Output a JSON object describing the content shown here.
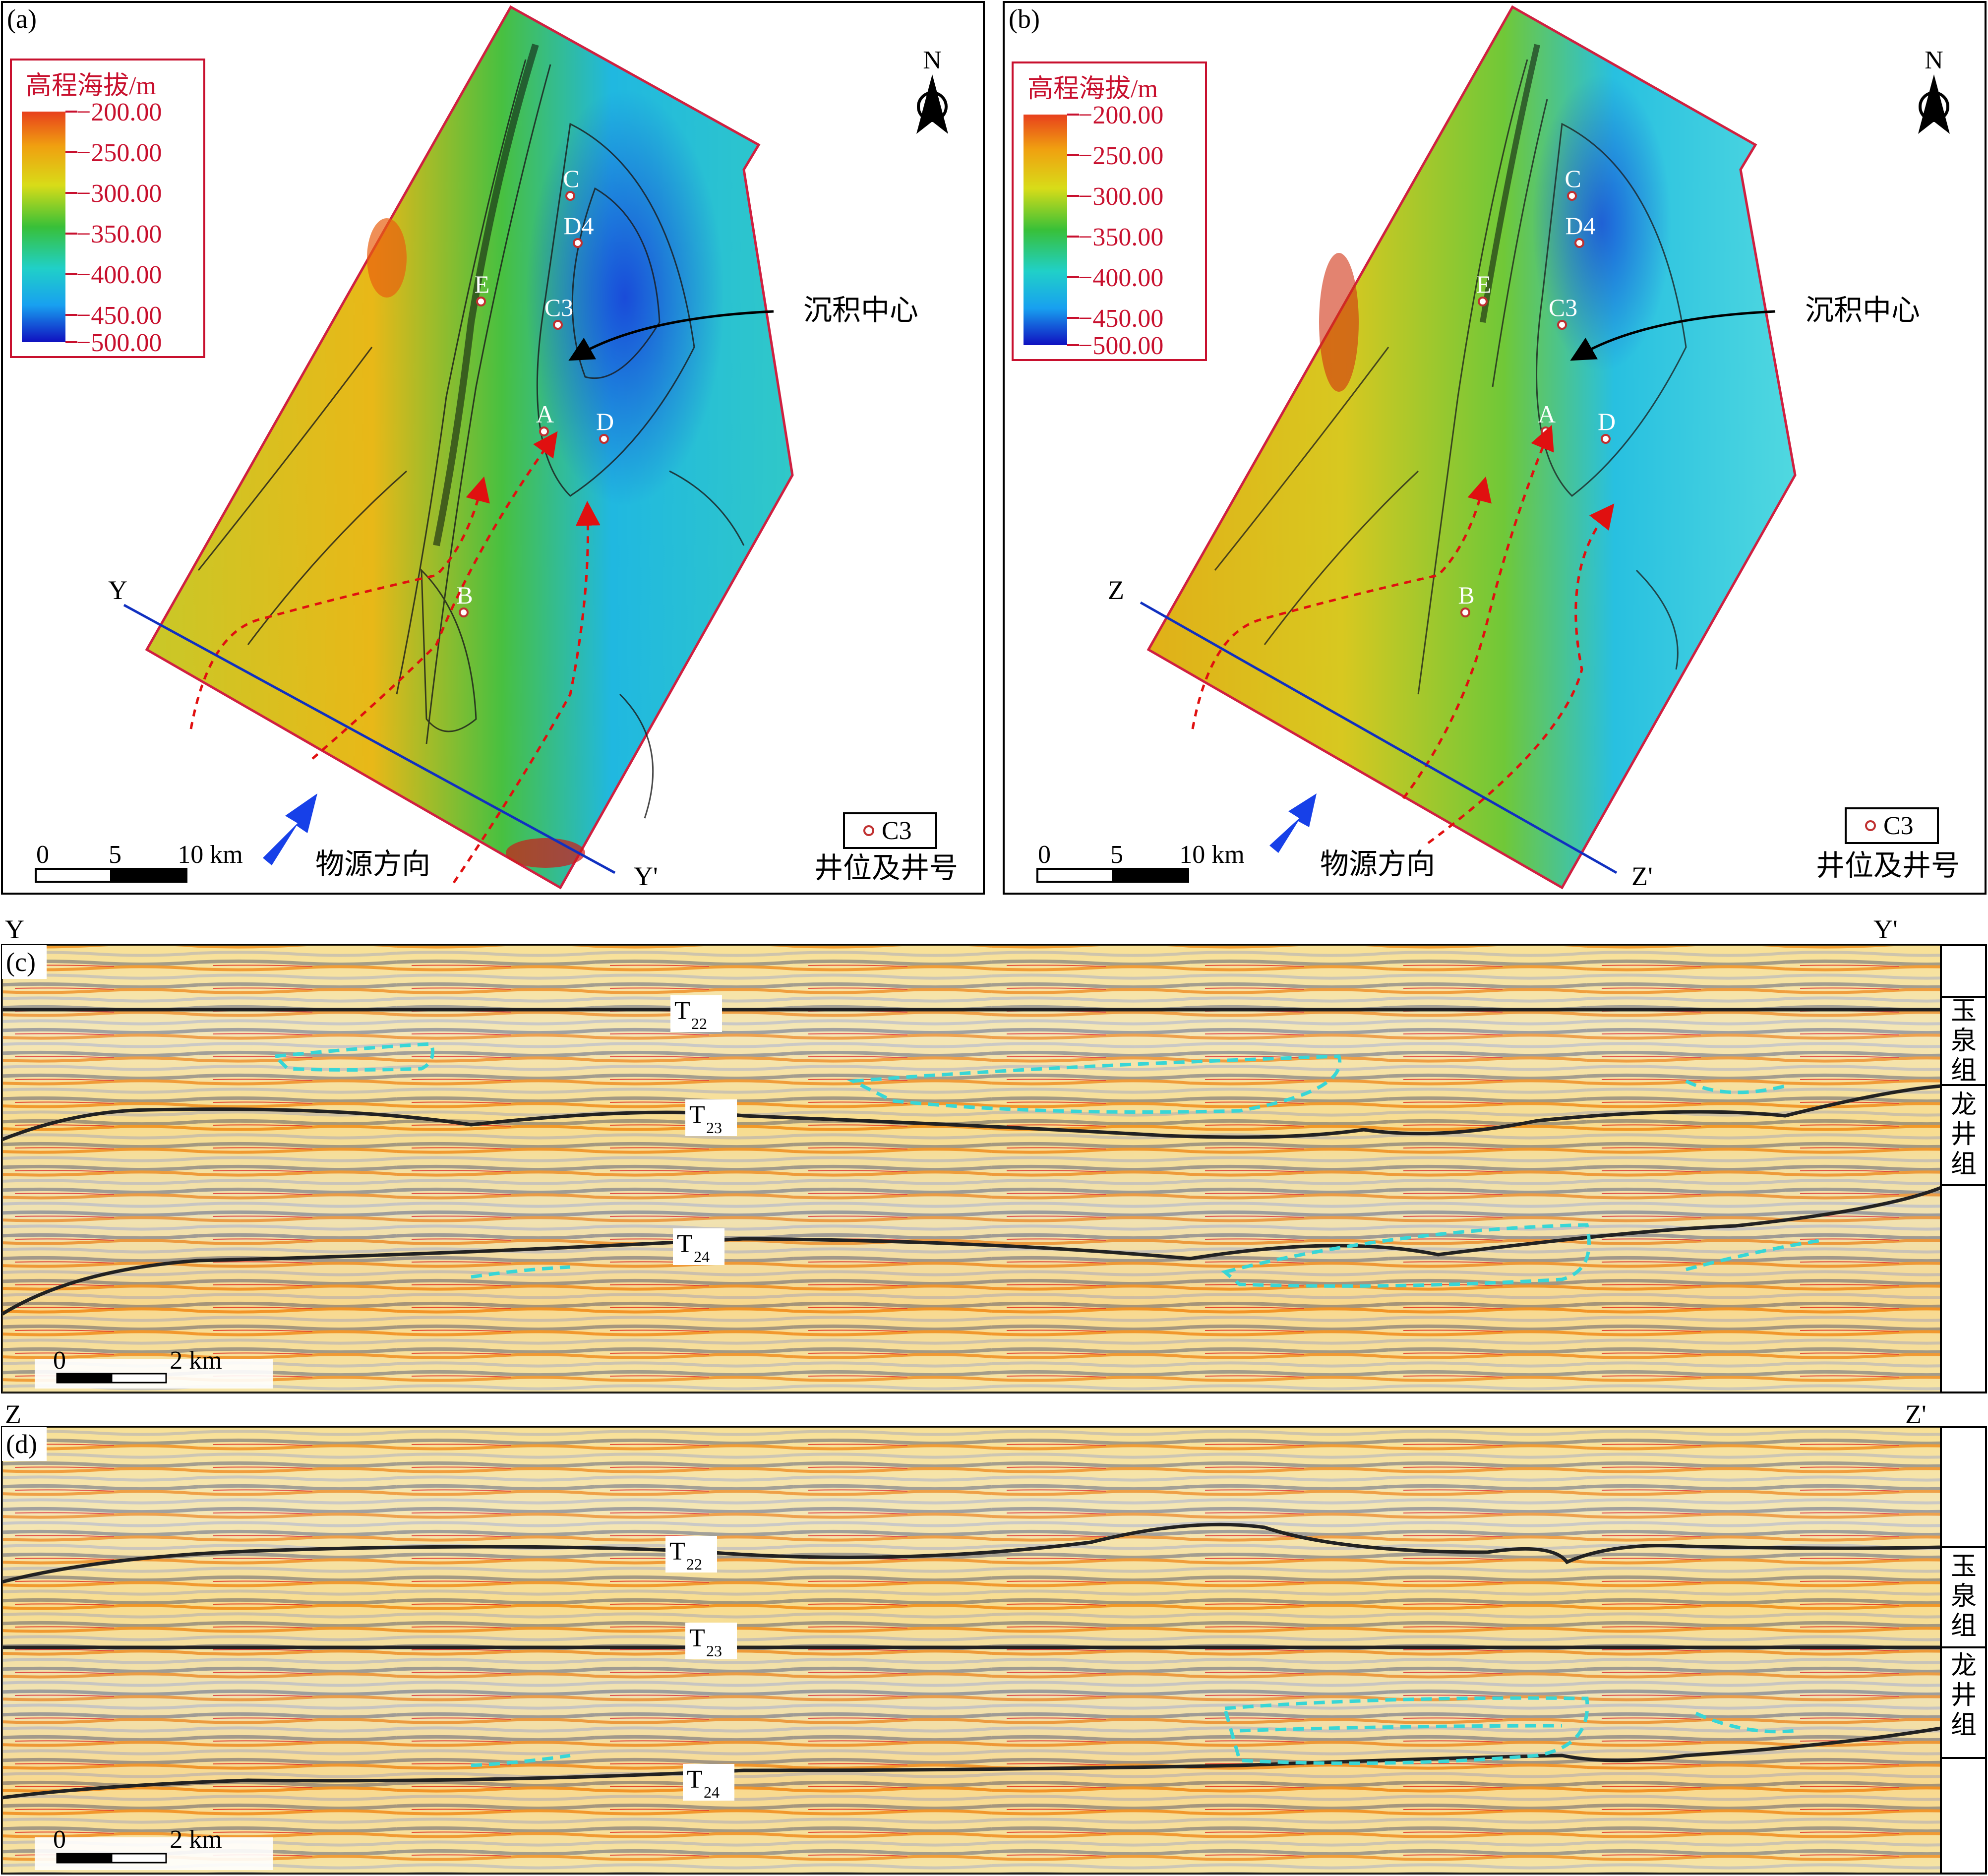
{
  "panels": {
    "a": {
      "label": "(a)",
      "legend_title": "高程海拔/m",
      "legend_ticks": [
        "−200.00",
        "−250.00",
        "−300.00",
        "−350.00",
        "−400.00",
        "−450.00",
        "−500.00"
      ],
      "wells": [
        {
          "name": "C"
        },
        {
          "name": "D4"
        },
        {
          "name": "E"
        },
        {
          "name": "C3"
        },
        {
          "name": "A"
        },
        {
          "name": "D"
        },
        {
          "name": "B"
        }
      ],
      "depocenter_label": "沉积中心",
      "section_start": "Y",
      "section_end": "Y'",
      "provenance_label": "物源方向",
      "scale": [
        "0",
        "5",
        "10 km"
      ],
      "well_legend_sample": "C3",
      "well_legend_text": "井位及井号",
      "north": "N"
    },
    "b": {
      "label": "(b)",
      "legend_title": "高程海拔/m",
      "legend_ticks": [
        "−200.00",
        "−250.00",
        "−300.00",
        "−350.00",
        "−400.00",
        "−450.00",
        "−500.00"
      ],
      "wells": [
        {
          "name": "C"
        },
        {
          "name": "D4"
        },
        {
          "name": "E"
        },
        {
          "name": "C3"
        },
        {
          "name": "A"
        },
        {
          "name": "D"
        },
        {
          "name": "B"
        }
      ],
      "depocenter_label": "沉积中心",
      "section_start": "Z",
      "section_end": "Z'",
      "provenance_label": "物源方向",
      "scale": [
        "0",
        "5",
        "10 km"
      ],
      "well_legend_sample": "C3",
      "well_legend_text": "井位及井号",
      "north": "N"
    },
    "c": {
      "label": "(c)",
      "left_end": "Y",
      "right_end": "Y'",
      "horizons": [
        {
          "name": "T",
          "sub": "22"
        },
        {
          "name": "T",
          "sub": "23"
        },
        {
          "name": "T",
          "sub": "24"
        }
      ],
      "formation_upper": [
        "玉",
        "泉",
        "组"
      ],
      "formation_lower": [
        "龙",
        "井",
        "组"
      ],
      "scale": [
        "0",
        "2 km"
      ]
    },
    "d": {
      "label": "(d)",
      "left_end": "Z",
      "right_end": "Z'",
      "horizons": [
        {
          "name": "T",
          "sub": "22"
        },
        {
          "name": "T",
          "sub": "23"
        },
        {
          "name": "T",
          "sub": "24"
        }
      ],
      "formation_upper": [
        "玉",
        "泉",
        "组"
      ],
      "formation_lower": [
        "龙",
        "井",
        "组"
      ],
      "scale": [
        "0",
        "2 km"
      ]
    }
  },
  "colors": {
    "border_red": "#d02040",
    "legend_text": "#c8102e",
    "section_line": "#1030c0",
    "provenance_arrow": "#1740e8",
    "flow_arrow": "#e01010",
    "dashed_outline": "#38d6d6"
  }
}
